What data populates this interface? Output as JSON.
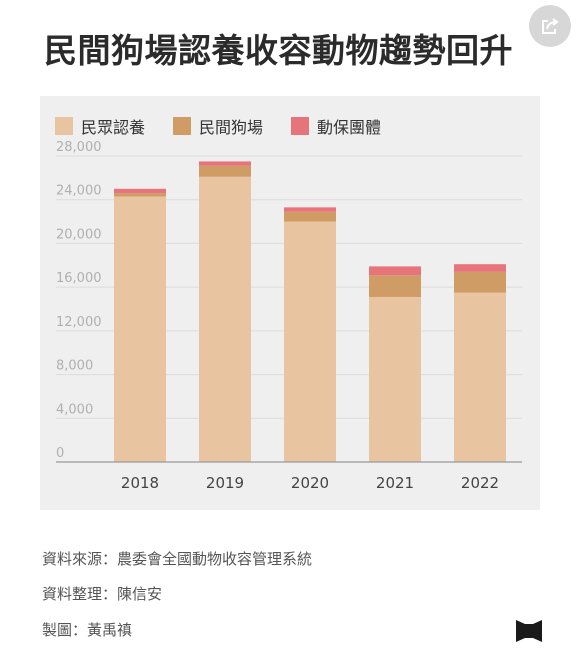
{
  "page": {
    "title": "民間狗場認養收容動物趨勢回升"
  },
  "chart_data": {
    "type": "bar",
    "stacked": true,
    "categories": [
      "2018",
      "2019",
      "2020",
      "2021",
      "2022"
    ],
    "series": [
      {
        "name": "民眾認養",
        "color": "#e9c4a0",
        "values": [
          24300,
          26100,
          22000,
          15100,
          15500
        ]
      },
      {
        "name": "民間狗場",
        "color": "#cf9c66",
        "values": [
          300,
          1000,
          900,
          2000,
          1900
        ]
      },
      {
        "name": "動保團體",
        "color": "#e8747b",
        "values": [
          400,
          400,
          400,
          800,
          700
        ]
      }
    ],
    "yticks": [
      0,
      4000,
      8000,
      12000,
      16000,
      20000,
      24000,
      28000
    ],
    "ytick_labels": [
      "0",
      "4,000",
      "8,000",
      "12,000",
      "16,000",
      "20,000",
      "24,000",
      "28,000"
    ],
    "ylim": [
      0,
      28000
    ],
    "grid": true,
    "legend_position": "top-left",
    "xlabel": "",
    "ylabel": ""
  },
  "footer": {
    "source": "資料來源：農委會全國動物收容管理系統",
    "compiled": "資料整理：陳信安",
    "designer": "製圖：黃禹禛"
  },
  "icons": {
    "share": "share-icon",
    "logo": "publisher-logo-icon"
  }
}
